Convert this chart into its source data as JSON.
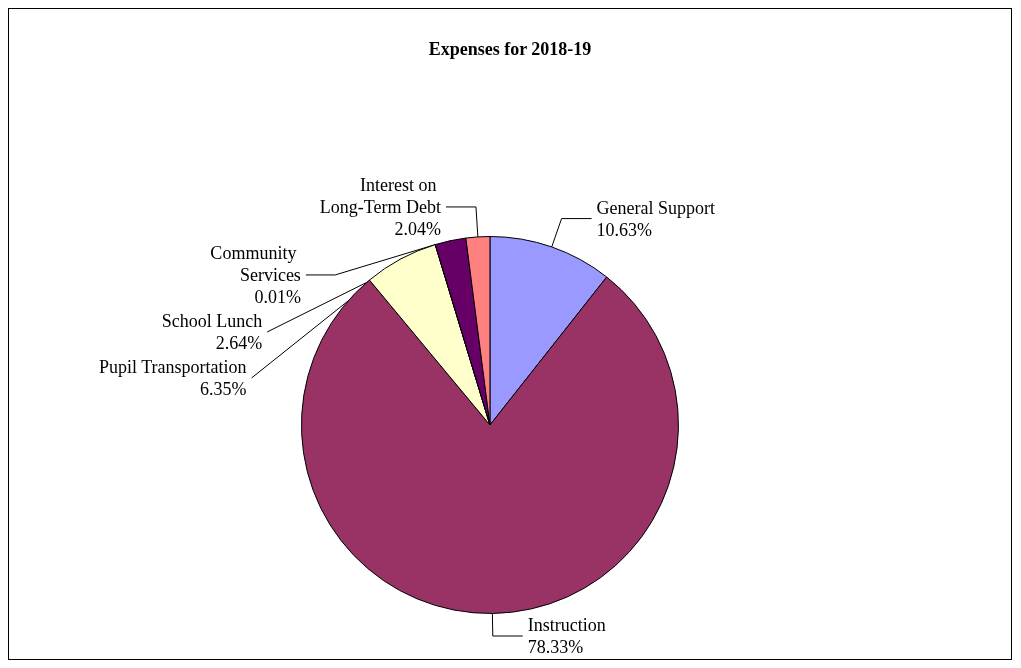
{
  "chart_data": {
    "type": "pie",
    "title": "Expenses for 2018-19",
    "categories": [
      "General Support",
      "Instruction",
      "Pupil Transportation",
      "Community Services",
      "School Lunch",
      "Interest on Long-Term Debt"
    ],
    "values": [
      10.63,
      78.33,
      6.35,
      0.01,
      2.64,
      2.04
    ],
    "colors": [
      "#9999ff",
      "#993366",
      "#ffffcc",
      "#ccffff",
      "#660066",
      "#ff8080"
    ],
    "value_labels": [
      "10.63%",
      "78.33%",
      "6.35%",
      "0.01%",
      "2.64%",
      "2.04%"
    ],
    "legend": false
  }
}
